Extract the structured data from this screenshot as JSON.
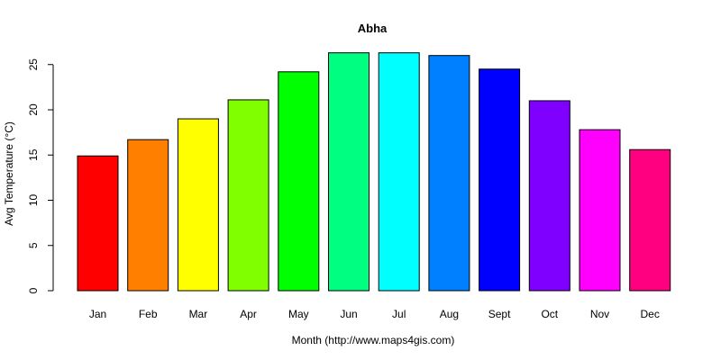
{
  "chart_data": {
    "type": "bar",
    "title": "Abha",
    "xlabel": "Month (http://www.maps4gis.com)",
    "ylabel": "Avg Temperature (°C)",
    "categories": [
      "Jan",
      "Feb",
      "Mar",
      "Apr",
      "May",
      "Jun",
      "Jul",
      "Aug",
      "Sept",
      "Oct",
      "Nov",
      "Dec"
    ],
    "values": [
      14.9,
      16.7,
      19.0,
      21.1,
      24.2,
      26.3,
      26.3,
      26.0,
      24.5,
      21.0,
      17.8,
      15.6
    ],
    "colors": [
      "#ff0000",
      "#ff8000",
      "#ffff00",
      "#80ff00",
      "#00ff00",
      "#00ff80",
      "#00ffff",
      "#0080ff",
      "#0000ff",
      "#8000ff",
      "#ff00ff",
      "#ff0080"
    ],
    "yticks": [
      0,
      5,
      10,
      15,
      20,
      25
    ],
    "ylim": [
      0,
      26.3
    ],
    "grid": false,
    "legend": "none"
  }
}
